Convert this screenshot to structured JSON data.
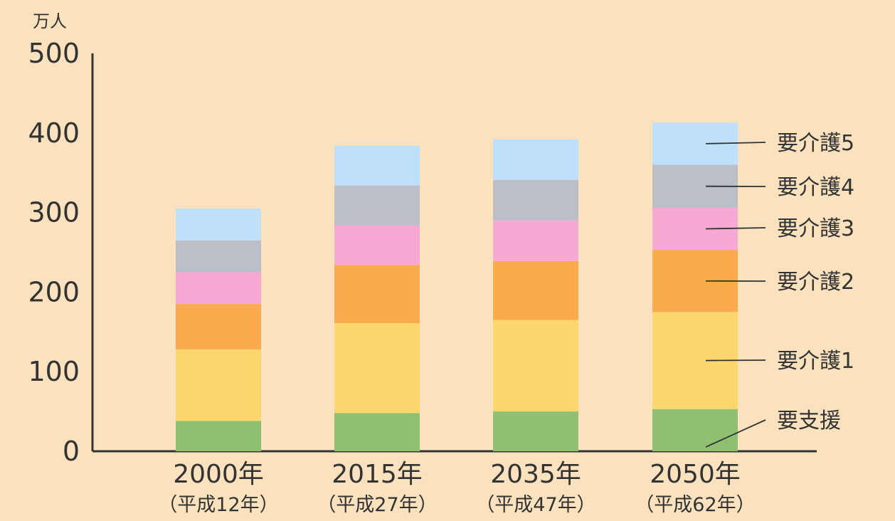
{
  "chart_data": {
    "type": "bar",
    "stacked": true,
    "unit": "万人",
    "ylim": [
      0,
      500
    ],
    "yticks": [
      0,
      100,
      200,
      300,
      400,
      500
    ],
    "grid": false,
    "legend_placement": "right",
    "categories": [
      "2000年",
      "2015年",
      "2035年",
      "2050年"
    ],
    "category_subtitles": [
      "（平成12年）",
      "（平成27年）",
      "（平成47年）",
      "（平成62年）"
    ],
    "series": [
      {
        "name": "要支援",
        "color": "#8fc071",
        "values": [
          38,
          48,
          50,
          53
        ]
      },
      {
        "name": "要介護1",
        "color": "#fcd76e",
        "values": [
          90,
          113,
          115,
          122
        ]
      },
      {
        "name": "要介護2",
        "color": "#fbab4e",
        "values": [
          57,
          73,
          74,
          78
        ]
      },
      {
        "name": "要介護3",
        "color": "#f7a8d4",
        "values": [
          40,
          50,
          51,
          53
        ]
      },
      {
        "name": "要介護4",
        "color": "#bcbfc7",
        "values": [
          40,
          50,
          51,
          54
        ]
      },
      {
        "name": "要介護5",
        "color": "#bfe0fb",
        "values": [
          40,
          50,
          51,
          53
        ]
      }
    ]
  }
}
